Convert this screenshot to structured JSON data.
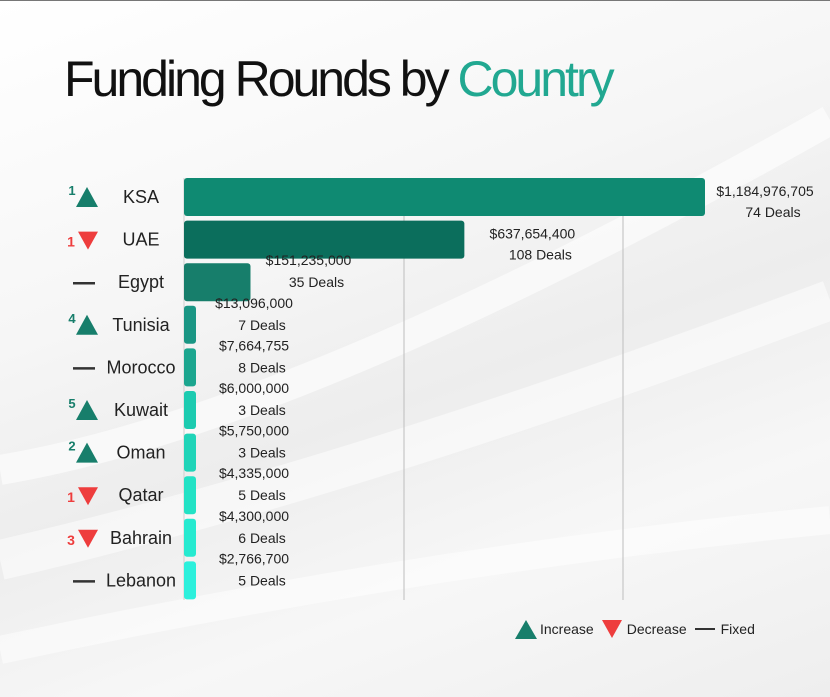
{
  "title": {
    "main": "Funding Rounds by ",
    "accent": "Country"
  },
  "colors": {
    "increase": "#177e6b",
    "decrease": "#ee3d3d",
    "fixed": "#333333",
    "accent": "#21a891"
  },
  "legend": {
    "increase": "Increase",
    "decrease": "Decrease",
    "fixed": "Fixed"
  },
  "chart_data": {
    "type": "bar",
    "orientation": "horizontal",
    "categories": [
      "KSA",
      "UAE",
      "Egypt",
      "Tunisia",
      "Morocco",
      "Kuwait",
      "Oman",
      "Qatar",
      "Bahrain",
      "Lebanon"
    ],
    "values": [
      1184976705,
      637654400,
      151235000,
      13096000,
      7664755,
      6000000,
      5750000,
      4335000,
      4300000,
      2766700
    ],
    "value_labels": [
      "$1,184,976,705",
      "$637,654,400",
      "$151,235,000",
      "$13,096,000",
      "$7,664,755",
      "$6,000,000",
      "$5,750,000",
      "$4,335,000",
      "$4,300,000",
      "$2,766,700"
    ],
    "deals": [
      "74 Deals",
      "108 Deals",
      "35 Deals",
      "7 Deals",
      "8 Deals",
      "3 Deals",
      "3 Deals",
      "5 Deals",
      "6 Deals",
      "5 Deals"
    ],
    "rank_change": [
      {
        "dir": "up",
        "n": "1"
      },
      {
        "dir": "down",
        "n": "1"
      },
      {
        "dir": "fixed",
        "n": ""
      },
      {
        "dir": "up",
        "n": "4"
      },
      {
        "dir": "fixed",
        "n": ""
      },
      {
        "dir": "up",
        "n": "5"
      },
      {
        "dir": "up",
        "n": "2"
      },
      {
        "dir": "down",
        "n": "1"
      },
      {
        "dir": "down",
        "n": "3"
      },
      {
        "dir": "fixed",
        "n": ""
      }
    ],
    "bar_colors": [
      "#0f8a72",
      "#0b6e5c",
      "#177e6b",
      "#1a9684",
      "#1ca68f",
      "#1ccbb0",
      "#1fd4b8",
      "#22e2c5",
      "#26ead0",
      "#2cf0dc"
    ],
    "legend_position": "bottom-right",
    "grid": true
  }
}
